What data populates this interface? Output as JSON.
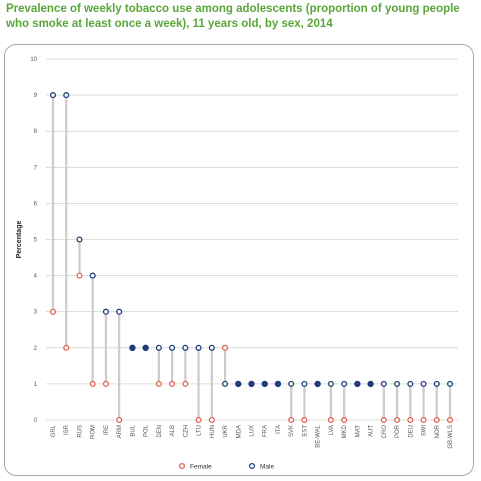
{
  "chart_data": {
    "type": "dot",
    "title": "Prevalence of weekly tobacco use among adolescents (proportion of young people who smoke at least once a week), 11 years old, by sex, 2014",
    "xlabel": "",
    "ylabel": "Percentage",
    "ylim": [
      0,
      10
    ],
    "yticks": [
      "0",
      "1",
      "2",
      "3",
      "4",
      "5",
      "6",
      "7",
      "8",
      "9",
      "10"
    ],
    "grid": true,
    "legend_position": "bottom",
    "categories": [
      "GRL",
      "ISR",
      "RUS",
      "ROM",
      "IRE",
      "ARM",
      "BUL",
      "POL",
      "DEN",
      "ALB",
      "CZH",
      "LTU",
      "HUN",
      "UKR",
      "MDA",
      "LUX",
      "FRA",
      "ITA",
      "SVK",
      "EST",
      "BE-WAL",
      "LVA",
      "MKD",
      "MAT",
      "AUT",
      "CRO",
      "POR",
      "DEU",
      "SWI",
      "NOR",
      "GB-WLS"
    ],
    "series": [
      {
        "name": "Female",
        "color": "#e0584a",
        "values": [
          3,
          2,
          4,
          1,
          1,
          0,
          2,
          2,
          1,
          1,
          1,
          0,
          0,
          2,
          1,
          1,
          1,
          1,
          0,
          0,
          1,
          0,
          0,
          1,
          1,
          0,
          0,
          0,
          0,
          0,
          0
        ]
      },
      {
        "name": "Male",
        "color": "#1f3d7a",
        "values": [
          9,
          9,
          5,
          4,
          3,
          3,
          2,
          2,
          2,
          2,
          2,
          2,
          2,
          1,
          1,
          1,
          1,
          1,
          1,
          1,
          1,
          1,
          1,
          1,
          1,
          1,
          1,
          1,
          1,
          1,
          1
        ]
      }
    ],
    "stem_color": "#cccccc"
  }
}
